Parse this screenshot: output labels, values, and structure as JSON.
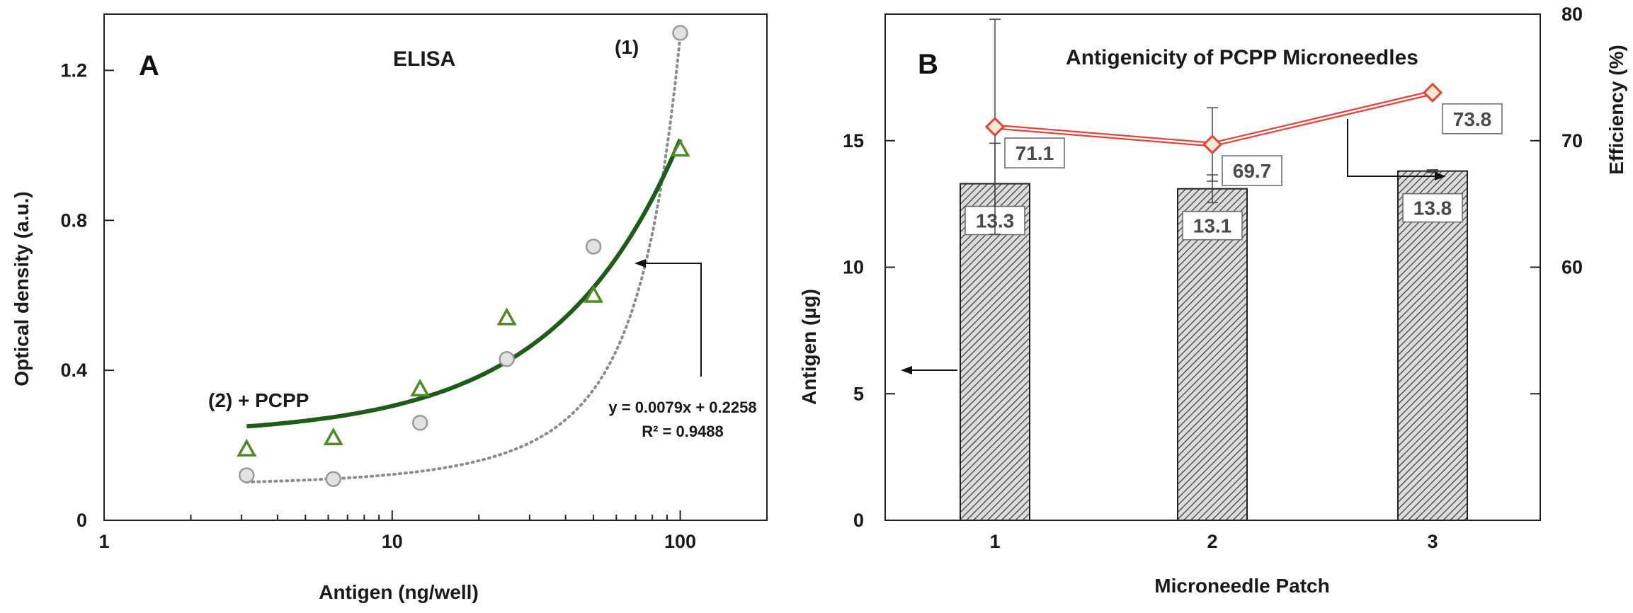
{
  "chart_data": [
    {
      "type": "scatter",
      "panel": "A",
      "title": "ELISA",
      "xlabel": "Antigen (ng/well)",
      "ylabel": "Optical density (a.u.)",
      "xscale": "log",
      "xlim": [
        1,
        200
      ],
      "ylim": [
        0,
        1.35
      ],
      "xticks": [
        1,
        10,
        100
      ],
      "xtick_labels": [
        "1",
        "10",
        "100"
      ],
      "yticks": [
        0,
        0.4,
        0.8,
        1.2
      ],
      "ytick_labels": [
        "0",
        "0.4",
        "0.8",
        "1.2"
      ],
      "grid": false,
      "series": [
        {
          "name": "(1)",
          "marker": "circle",
          "color": "#9a9a9a",
          "fill": "#e2e2e2",
          "x": [
            3.125,
            6.25,
            12.5,
            25,
            50,
            100
          ],
          "y": [
            0.12,
            0.11,
            0.26,
            0.43,
            0.73,
            1.3
          ],
          "trendline": {
            "style": "dotted",
            "color": "#8c8c8c",
            "fit": "exponential",
            "a": 0.094,
            "b": 0.0262
          }
        },
        {
          "name": "(2) + PCPP",
          "marker": "triangle",
          "color": "#4e8a26",
          "fill": "#ffffff",
          "x": [
            3.125,
            6.25,
            12.5,
            25,
            50,
            100
          ],
          "y": [
            0.19,
            0.22,
            0.35,
            0.54,
            0.6,
            0.99
          ],
          "trendline": {
            "style": "solid",
            "color": "#1f5c1a",
            "fit": "linear",
            "slope": 0.0079,
            "intercept": 0.2258
          }
        }
      ],
      "annotations": {
        "series1_label": "(1)",
        "series2_label": "(2) + PCPP",
        "equation": "y = 0.0079x + 0.2258",
        "r_squared": "R² = 0.9488"
      }
    },
    {
      "type": "bar",
      "panel": "B",
      "title": "Antigenicity of PCPP Microneedles",
      "xlabel": "Microneedle Patch",
      "ylabel": "Antigen (µg)",
      "y2label": "Efficiency (%)",
      "categories": [
        "1",
        "2",
        "3"
      ],
      "ylim": [
        0,
        20
      ],
      "yticks": [
        0,
        5,
        10,
        15
      ],
      "ytick_labels": [
        "0",
        "5",
        "10",
        "15"
      ],
      "y2lim": [
        40,
        80
      ],
      "y2ticks": [
        60,
        70,
        80
      ],
      "y2tick_labels": [
        "60",
        "70",
        "80"
      ],
      "grid": false,
      "series": [
        {
          "name": "Antigen",
          "axis": "left",
          "kind": "bar",
          "pattern": "hatched",
          "values": [
            13.3,
            13.1,
            13.8
          ],
          "errors": [
            1.6,
            0.55,
            0.05
          ],
          "value_labels": [
            "13.3",
            "13.1",
            "13.8"
          ]
        },
        {
          "name": "Efficiency",
          "axis": "right",
          "kind": "line",
          "marker": "diamond",
          "color": "#e8413a",
          "values": [
            71.1,
            69.7,
            73.8
          ],
          "errors": [
            8.5,
            2.9,
            0
          ],
          "value_labels": [
            "71.1",
            "69.7",
            "73.8"
          ]
        }
      ]
    }
  ]
}
